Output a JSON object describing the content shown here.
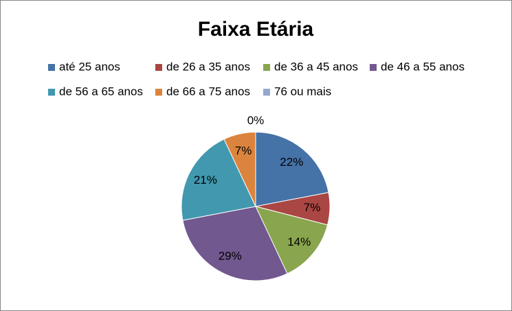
{
  "chart_data": {
    "type": "pie",
    "title": "Faixa Etária",
    "categories": [
      "até 25 anos",
      "de 26 a 35 anos",
      "de 36 a 45 anos",
      "de 46 a 55 anos",
      "de 56 a 65 anos",
      "de 66 a 75 anos",
      "76 ou mais"
    ],
    "values": [
      22,
      7,
      14,
      29,
      21,
      7,
      0
    ],
    "value_labels": [
      "22%",
      "7%",
      "14%",
      "29%",
      "21%",
      "7%",
      "0%"
    ],
    "colors": [
      "#4572a7",
      "#aa4643",
      "#89a54e",
      "#71588f",
      "#4198af",
      "#db843d",
      "#93a9cf"
    ],
    "legend": "top"
  }
}
